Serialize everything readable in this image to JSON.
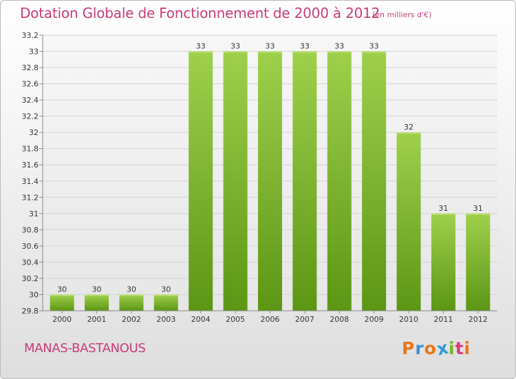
{
  "header": {
    "title": "Dotation Globale de Fonctionnement de 2000 à 2012",
    "unit": "(en milliers d'€)"
  },
  "footer": {
    "commune": "MANAS-BASTANOUS",
    "logo": {
      "letters": [
        "P",
        "r",
        "o",
        "x",
        "i",
        "t",
        "i"
      ],
      "colors": [
        "#e8751a",
        "#3b8fd6",
        "#e8751a",
        "#2e9ad8",
        "#7ab51d",
        "#d93a7c",
        "#e8751a"
      ]
    }
  },
  "chart_data": {
    "type": "bar",
    "title": "Dotation Globale de Fonctionnement de 2000 à 2012",
    "subtitle": "(en milliers d'€)",
    "categories": [
      "2000",
      "2001",
      "2002",
      "2003",
      "2004",
      "2005",
      "2006",
      "2007",
      "2008",
      "2009",
      "2010",
      "2011",
      "2012"
    ],
    "values": [
      30,
      30,
      30,
      30,
      33,
      33,
      33,
      33,
      33,
      33,
      32,
      31,
      31
    ],
    "value_labels": [
      "30",
      "30",
      "30",
      "30",
      "33",
      "33",
      "33",
      "33",
      "33",
      "33",
      "32",
      "31",
      "31"
    ],
    "ylim": [
      29.8,
      33.2
    ],
    "yticks": [
      "29.8",
      "30",
      "30.2",
      "30.4",
      "30.6",
      "30.8",
      "31",
      "31.2",
      "31.4",
      "31.6",
      "31.8",
      "32",
      "32.2",
      "32.4",
      "32.6",
      "32.8",
      "33",
      "33.2"
    ],
    "grid": true,
    "bar_color": "#7ab51d"
  }
}
